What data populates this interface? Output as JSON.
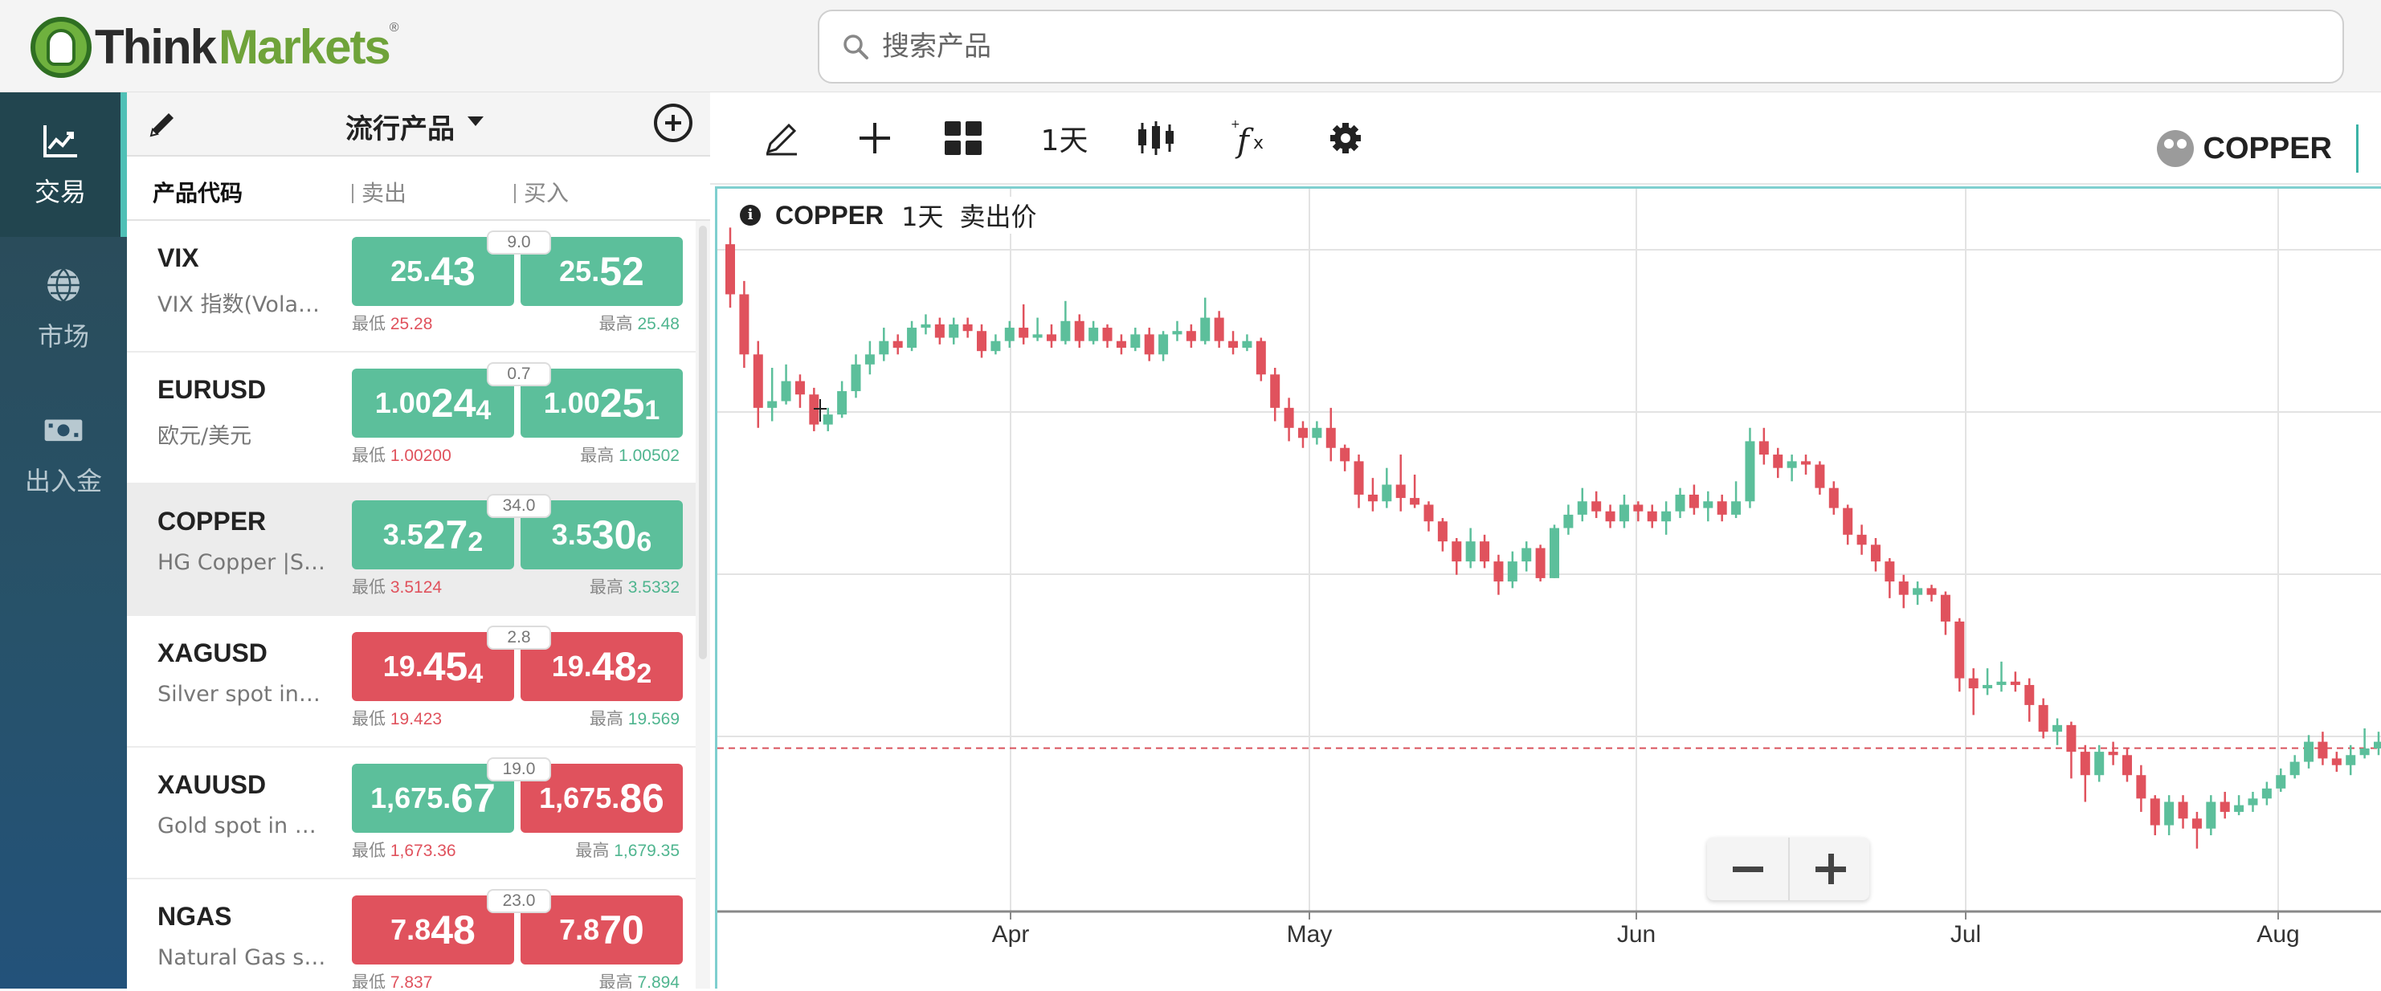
{
  "brand": {
    "name_dark": "Think",
    "name_green": "Markets",
    "reg": "®"
  },
  "search": {
    "placeholder": "搜索产品"
  },
  "nav": [
    {
      "label": "交易",
      "icon": "chart-line-icon",
      "active": true
    },
    {
      "label": "市场",
      "icon": "globe-icon",
      "active": false
    },
    {
      "label": "出入金",
      "icon": "cash-icon",
      "active": false
    }
  ],
  "watchlist": {
    "title": "流行产品",
    "columns": {
      "symbol": "产品代码",
      "sell": "卖出",
      "buy": "买入"
    },
    "rows": [
      {
        "symbol": "VIX",
        "desc": "VIX 指数(Volatility)",
        "spread": "9.0",
        "dir": "up",
        "sell": {
          "a": "25.",
          "b": "43",
          "c": ""
        },
        "buy": {
          "a": "25.",
          "b": "52",
          "c": ""
        },
        "low_label": "最低",
        "low": "25.28",
        "high_label": "最高",
        "high": "25.48"
      },
      {
        "symbol": "EURUSD",
        "desc": "欧元/美元",
        "spread": "0.7",
        "dir": "up",
        "sell": {
          "a": "1.00",
          "b": "24",
          "c": "4"
        },
        "buy": {
          "a": "1.00",
          "b": "25",
          "c": "1"
        },
        "low_label": "最低",
        "low": "1.00200",
        "high_label": "最高",
        "high": "1.00502"
      },
      {
        "symbol": "COPPER",
        "desc": "HG Copper |Spot",
        "spread": "34.0",
        "dir": "up",
        "selected": true,
        "sell": {
          "a": "3.5",
          "b": "27",
          "c": "2"
        },
        "buy": {
          "a": "3.5",
          "b": "30",
          "c": "6"
        },
        "low_label": "最低",
        "low": "3.5124",
        "high_label": "最高",
        "high": "3.5332"
      },
      {
        "symbol": "XAGUSD",
        "desc": "Silver spot in US Dollar",
        "spread": "2.8",
        "dir": "down",
        "sell": {
          "a": "19.",
          "b": "45",
          "c": "4"
        },
        "buy": {
          "a": "19.",
          "b": "48",
          "c": "2"
        },
        "low_label": "最低",
        "low": "19.423",
        "high_label": "最高",
        "high": "19.569"
      },
      {
        "symbol": "XAUUSD",
        "desc": "Gold spot in US Dollar",
        "spread": "19.0",
        "dir": "mixed",
        "sell": {
          "a": "1,675.",
          "b": "67",
          "c": ""
        },
        "buy": {
          "a": "1,675.",
          "b": "86",
          "c": ""
        },
        "low_label": "最低",
        "low": "1,673.36",
        "high_label": "最高",
        "high": "1,679.35"
      },
      {
        "symbol": "NGAS",
        "desc": "Natural Gas spot",
        "spread": "23.0",
        "dir": "down",
        "sell": {
          "a": "7.8",
          "b": "48",
          "c": ""
        },
        "buy": {
          "a": "7.8",
          "b": "70",
          "c": ""
        },
        "low_label": "最低",
        "low": "7.837",
        "high_label": "最高",
        "high": "7.894"
      }
    ]
  },
  "toolbar": {
    "timeframe": "1天",
    "symbol": "COPPER"
  },
  "chart_legend": {
    "symbol": "COPPER",
    "timeframe": "1天",
    "price_type": "卖出价"
  },
  "chart_data": {
    "type": "candlestick",
    "x_tick_labels": [
      "Apr",
      "May",
      "Jun",
      "Jul",
      "Aug"
    ],
    "up_color": "#5cbf9b",
    "down_color": "#e0525d",
    "current_price_line": "dashed",
    "candles": [
      [
        0,
        1.15,
        1.0,
        1.2,
        0.96
      ],
      [
        1,
        1.0,
        0.82,
        1.04,
        0.78
      ],
      [
        2,
        0.82,
        0.66,
        0.86,
        0.6
      ],
      [
        3,
        0.66,
        0.68,
        0.78,
        0.62
      ],
      [
        4,
        0.68,
        0.74,
        0.79,
        0.67
      ],
      [
        5,
        0.74,
        0.7,
        0.76,
        0.66
      ],
      [
        6,
        0.7,
        0.61,
        0.72,
        0.59
      ],
      [
        7,
        0.61,
        0.64,
        0.66,
        0.59
      ],
      [
        8,
        0.64,
        0.71,
        0.74,
        0.63
      ],
      [
        9,
        0.71,
        0.79,
        0.82,
        0.69
      ],
      [
        10,
        0.79,
        0.82,
        0.86,
        0.76
      ],
      [
        11,
        0.82,
        0.86,
        0.9,
        0.8
      ],
      [
        12,
        0.86,
        0.84,
        0.88,
        0.82
      ],
      [
        13,
        0.84,
        0.9,
        0.92,
        0.83
      ],
      [
        14,
        0.9,
        0.91,
        0.94,
        0.88
      ],
      [
        15,
        0.91,
        0.87,
        0.93,
        0.85
      ],
      [
        16,
        0.87,
        0.91,
        0.93,
        0.85
      ],
      [
        17,
        0.91,
        0.89,
        0.93,
        0.87
      ],
      [
        18,
        0.89,
        0.83,
        0.91,
        0.81
      ],
      [
        19,
        0.83,
        0.86,
        0.88,
        0.82
      ],
      [
        20,
        0.86,
        0.9,
        0.92,
        0.84
      ],
      [
        21,
        0.9,
        0.87,
        0.97,
        0.85
      ],
      [
        22,
        0.87,
        0.88,
        0.93,
        0.86
      ],
      [
        23,
        0.88,
        0.86,
        0.91,
        0.84
      ],
      [
        24,
        0.86,
        0.92,
        0.98,
        0.85
      ],
      [
        25,
        0.92,
        0.86,
        0.94,
        0.84
      ],
      [
        26,
        0.86,
        0.9,
        0.92,
        0.85
      ],
      [
        27,
        0.9,
        0.86,
        0.91,
        0.84
      ],
      [
        28,
        0.86,
        0.84,
        0.88,
        0.82
      ],
      [
        29,
        0.84,
        0.88,
        0.9,
        0.83
      ],
      [
        30,
        0.88,
        0.82,
        0.9,
        0.8
      ],
      [
        31,
        0.82,
        0.88,
        0.89,
        0.8
      ],
      [
        32,
        0.88,
        0.89,
        0.92,
        0.86
      ],
      [
        33,
        0.89,
        0.86,
        0.91,
        0.84
      ],
      [
        34,
        0.86,
        0.93,
        0.99,
        0.85
      ],
      [
        35,
        0.93,
        0.86,
        0.95,
        0.84
      ],
      [
        36,
        0.86,
        0.84,
        0.89,
        0.82
      ],
      [
        37,
        0.84,
        0.86,
        0.88,
        0.83
      ],
      [
        38,
        0.86,
        0.76,
        0.87,
        0.74
      ],
      [
        39,
        0.76,
        0.66,
        0.78,
        0.62
      ],
      [
        40,
        0.66,
        0.6,
        0.69,
        0.56
      ],
      [
        41,
        0.6,
        0.57,
        0.62,
        0.54
      ],
      [
        42,
        0.57,
        0.6,
        0.62,
        0.55
      ],
      [
        43,
        0.6,
        0.54,
        0.66,
        0.5
      ],
      [
        44,
        0.54,
        0.5,
        0.55,
        0.47
      ],
      [
        45,
        0.5,
        0.4,
        0.52,
        0.36
      ],
      [
        46,
        0.4,
        0.38,
        0.45,
        0.35
      ],
      [
        47,
        0.38,
        0.43,
        0.48,
        0.36
      ],
      [
        48,
        0.43,
        0.39,
        0.52,
        0.35
      ],
      [
        49,
        0.39,
        0.37,
        0.46,
        0.36
      ],
      [
        50,
        0.37,
        0.32,
        0.38,
        0.29
      ],
      [
        51,
        0.32,
        0.26,
        0.33,
        0.23
      ],
      [
        52,
        0.26,
        0.2,
        0.27,
        0.16
      ],
      [
        53,
        0.2,
        0.26,
        0.3,
        0.18
      ],
      [
        54,
        0.26,
        0.2,
        0.28,
        0.18
      ],
      [
        55,
        0.2,
        0.14,
        0.22,
        0.1
      ],
      [
        56,
        0.14,
        0.2,
        0.23,
        0.12
      ],
      [
        57,
        0.2,
        0.24,
        0.26,
        0.17
      ],
      [
        58,
        0.24,
        0.15,
        0.25,
        0.14
      ],
      [
        59,
        0.15,
        0.3,
        0.31,
        0.15
      ],
      [
        60,
        0.3,
        0.34,
        0.37,
        0.28
      ],
      [
        61,
        0.34,
        0.38,
        0.42,
        0.32
      ],
      [
        62,
        0.38,
        0.35,
        0.41,
        0.33
      ],
      [
        63,
        0.35,
        0.32,
        0.37,
        0.3
      ],
      [
        64,
        0.32,
        0.37,
        0.4,
        0.3
      ],
      [
        65,
        0.37,
        0.35,
        0.38,
        0.32
      ],
      [
        66,
        0.35,
        0.32,
        0.37,
        0.3
      ],
      [
        67,
        0.32,
        0.35,
        0.38,
        0.28
      ],
      [
        68,
        0.35,
        0.4,
        0.42,
        0.33
      ],
      [
        69,
        0.4,
        0.36,
        0.43,
        0.34
      ],
      [
        70,
        0.36,
        0.38,
        0.41,
        0.32
      ],
      [
        71,
        0.38,
        0.34,
        0.4,
        0.32
      ],
      [
        72,
        0.34,
        0.38,
        0.44,
        0.33
      ],
      [
        73,
        0.38,
        0.56,
        0.6,
        0.36
      ],
      [
        74,
        0.56,
        0.52,
        0.6,
        0.49
      ],
      [
        75,
        0.52,
        0.48,
        0.54,
        0.45
      ],
      [
        76,
        0.48,
        0.5,
        0.52,
        0.44
      ],
      [
        77,
        0.5,
        0.49,
        0.52,
        0.46
      ],
      [
        78,
        0.49,
        0.42,
        0.5,
        0.4
      ],
      [
        79,
        0.42,
        0.36,
        0.44,
        0.34
      ],
      [
        80,
        0.36,
        0.28,
        0.37,
        0.25
      ],
      [
        81,
        0.28,
        0.25,
        0.31,
        0.22
      ],
      [
        82,
        0.25,
        0.2,
        0.27,
        0.17
      ],
      [
        83,
        0.2,
        0.14,
        0.21,
        0.09
      ],
      [
        84,
        0.14,
        0.1,
        0.16,
        0.06
      ],
      [
        85,
        0.1,
        0.12,
        0.14,
        0.07
      ],
      [
        86,
        0.12,
        0.1,
        0.13,
        0.08
      ],
      [
        87,
        0.1,
        0.02,
        0.11,
        -0.02
      ],
      [
        88,
        0.02,
        -0.15,
        0.03,
        -0.19
      ],
      [
        89,
        -0.15,
        -0.18,
        -0.12,
        -0.26
      ],
      [
        90,
        -0.18,
        -0.17,
        -0.12,
        -0.2
      ],
      [
        91,
        -0.17,
        -0.16,
        -0.1,
        -0.19
      ],
      [
        92,
        -0.16,
        -0.17,
        -0.13,
        -0.19
      ],
      [
        93,
        -0.17,
        -0.23,
        -0.15,
        -0.28
      ],
      [
        94,
        -0.23,
        -0.31,
        -0.21,
        -0.33
      ],
      [
        95,
        -0.31,
        -0.29,
        -0.27,
        -0.35
      ],
      [
        96,
        -0.29,
        -0.37,
        -0.28,
        -0.45
      ],
      [
        97,
        -0.37,
        -0.44,
        -0.35,
        -0.52
      ],
      [
        98,
        -0.44,
        -0.37,
        -0.35,
        -0.46
      ],
      [
        99,
        -0.37,
        -0.38,
        -0.34,
        -0.41
      ],
      [
        100,
        -0.38,
        -0.44,
        -0.36,
        -0.46
      ],
      [
        101,
        -0.44,
        -0.51,
        -0.41,
        -0.55
      ],
      [
        102,
        -0.51,
        -0.59,
        -0.5,
        -0.62
      ],
      [
        103,
        -0.59,
        -0.52,
        -0.5,
        -0.62
      ],
      [
        104,
        -0.52,
        -0.57,
        -0.5,
        -0.6
      ],
      [
        105,
        -0.57,
        -0.6,
        -0.55,
        -0.66
      ],
      [
        106,
        -0.6,
        -0.52,
        -0.5,
        -0.62
      ],
      [
        107,
        -0.52,
        -0.55,
        -0.49,
        -0.57
      ],
      [
        108,
        -0.55,
        -0.53,
        -0.5,
        -0.56
      ],
      [
        109,
        -0.53,
        -0.51,
        -0.49,
        -0.55
      ],
      [
        110,
        -0.51,
        -0.48,
        -0.46,
        -0.53
      ],
      [
        111,
        -0.48,
        -0.44,
        -0.42,
        -0.49
      ],
      [
        112,
        -0.44,
        -0.4,
        -0.38,
        -0.45
      ],
      [
        113,
        -0.4,
        -0.34,
        -0.32,
        -0.42
      ],
      [
        114,
        -0.34,
        -0.39,
        -0.31,
        -0.41
      ],
      [
        115,
        -0.39,
        -0.41,
        -0.37,
        -0.43
      ],
      [
        116,
        -0.41,
        -0.38,
        -0.35,
        -0.44
      ],
      [
        117,
        -0.38,
        -0.36,
        -0.3,
        -0.39
      ],
      [
        118,
        -0.36,
        -0.34,
        -0.31,
        -0.38
      ]
    ]
  }
}
